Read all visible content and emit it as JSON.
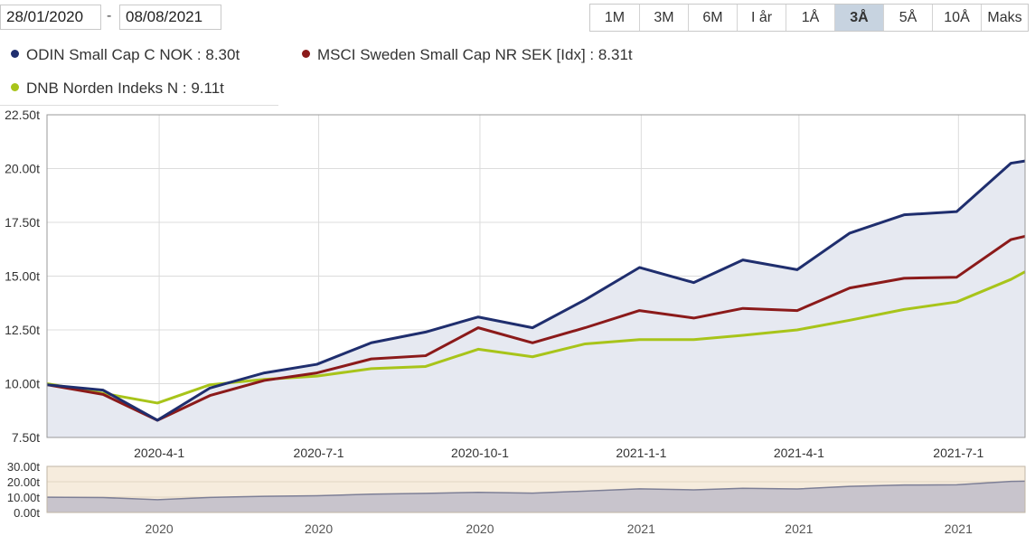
{
  "date_range": {
    "from": "28/01/2020",
    "separator": "-",
    "to": "08/08/2021"
  },
  "range_buttons": [
    {
      "label": "1M",
      "active": false
    },
    {
      "label": "3M",
      "active": false
    },
    {
      "label": "6M",
      "active": false
    },
    {
      "label": "I år",
      "active": false
    },
    {
      "label": "1Å",
      "active": false
    },
    {
      "label": "3Å",
      "active": true
    },
    {
      "label": "5Å",
      "active": false
    },
    {
      "label": "10Å",
      "active": false
    },
    {
      "label": "Maks",
      "active": false
    }
  ],
  "legend": [
    {
      "label": "ODIN Small Cap C NOK : 8.30t",
      "color": "#1f2e6e"
    },
    {
      "label": "MSCI Sweden Small Cap NR SEK [Idx] : 8.31t",
      "color": "#8b1a1a"
    },
    {
      "label": "DNB Norden Indeks N : 9.11t",
      "color": "#a8c41a"
    }
  ],
  "chart_data": {
    "type": "line",
    "title": "",
    "xlabel": "",
    "ylabel": "",
    "x": [
      "2020-01-28",
      "2020-02-29",
      "2020-03-31",
      "2020-04-30",
      "2020-05-31",
      "2020-06-30",
      "2020-07-31",
      "2020-08-31",
      "2020-09-30",
      "2020-10-31",
      "2020-11-30",
      "2020-12-31",
      "2021-01-31",
      "2021-02-28",
      "2021-03-31",
      "2021-04-30",
      "2021-05-31",
      "2021-06-30",
      "2021-07-31",
      "2021-08-08"
    ],
    "series": [
      {
        "name": "ODIN Small Cap C NOK",
        "color": "#1f2e6e",
        "filled": true,
        "values": [
          9.95,
          9.7,
          8.3,
          9.8,
          10.5,
          10.9,
          11.9,
          12.4,
          13.1,
          12.6,
          13.9,
          15.4,
          14.7,
          15.75,
          15.3,
          17.0,
          17.85,
          18.0,
          20.25,
          20.35
        ]
      },
      {
        "name": "MSCI Sweden Small Cap NR SEK [Idx]",
        "color": "#8b1a1a",
        "filled": false,
        "values": [
          9.95,
          9.5,
          8.3,
          9.45,
          10.15,
          10.5,
          11.15,
          11.3,
          12.6,
          11.9,
          12.6,
          13.4,
          13.05,
          13.5,
          13.4,
          14.45,
          14.9,
          14.95,
          16.7,
          16.85
        ]
      },
      {
        "name": "DNB Norden Indeks N",
        "color": "#a8c41a",
        "filled": false,
        "values": [
          10.0,
          9.55,
          9.1,
          9.95,
          10.2,
          10.35,
          10.7,
          10.8,
          11.6,
          11.25,
          11.85,
          12.05,
          12.05,
          12.25,
          12.5,
          12.95,
          13.45,
          13.8,
          14.85,
          15.2
        ]
      }
    ],
    "ylim": [
      7.5,
      22.5
    ],
    "y_ticks": [
      "7.50t",
      "10.00t",
      "12.50t",
      "15.00t",
      "17.50t",
      "20.00t",
      "22.50t"
    ],
    "y_tick_values": [
      7.5,
      10,
      12.5,
      15,
      17.5,
      20,
      22.5
    ],
    "x_ticks": [
      "2020-4-1",
      "2020-7-1",
      "2020-10-1",
      "2021-1-1",
      "2021-4-1",
      "2021-7-1"
    ],
    "x_tick_dates": [
      "2020-04-01",
      "2020-07-01",
      "2020-10-01",
      "2021-01-01",
      "2021-04-01",
      "2021-07-01"
    ],
    "navigator": {
      "ylim": [
        0,
        30
      ],
      "y_ticks": [
        "0.00t",
        "10.00t",
        "20.00t",
        "30.00t"
      ],
      "y_tick_values": [
        0,
        10,
        20,
        30
      ],
      "x_ticks": [
        "2020",
        "2020",
        "2020",
        "2021",
        "2021",
        "2021"
      ]
    }
  }
}
